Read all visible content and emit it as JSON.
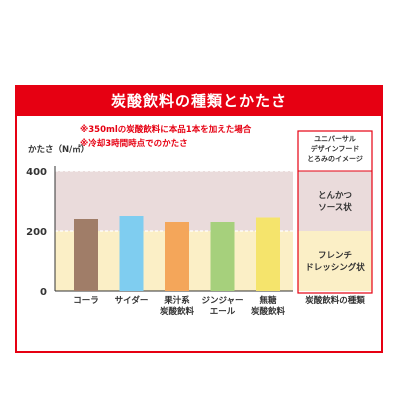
{
  "title": "炭酸飲料の種類とかたさ",
  "notes": [
    "※350mlの炭酸飲料に本品1本を加えた場合",
    "※冷却3時間時点でのかたさ"
  ],
  "colors": {
    "accent": "#e60012"
  },
  "chart_data": {
    "type": "bar",
    "ylabel": "かたさ（N/㎡）",
    "ylim": [
      0,
      400
    ],
    "yticks": [
      "0",
      "200",
      "400"
    ],
    "categories": [
      "コーラ",
      "サイダー",
      "果汁系\n炭酸飲料",
      "ジンジャー\nエール",
      "無糖\n炭酸飲料"
    ],
    "values": [
      240,
      250,
      230,
      230,
      245
    ],
    "bar_colors": [
      "#a07d68",
      "#7fcdf0",
      "#f4a65a",
      "#a6d07c",
      "#f5e46c"
    ],
    "bands": [
      {
        "label": "とんかつ\nソース状",
        "from": 200,
        "to": 400,
        "color": "#eadbdb"
      },
      {
        "label": "フレンチ\nドレッシング状",
        "from": 0,
        "to": 200,
        "color": "#fbefc6"
      }
    ],
    "side_header": "ユニバーサル\nデザインフード\nとろみのイメージ",
    "xaxis_label": "炭酸飲料の種類"
  }
}
